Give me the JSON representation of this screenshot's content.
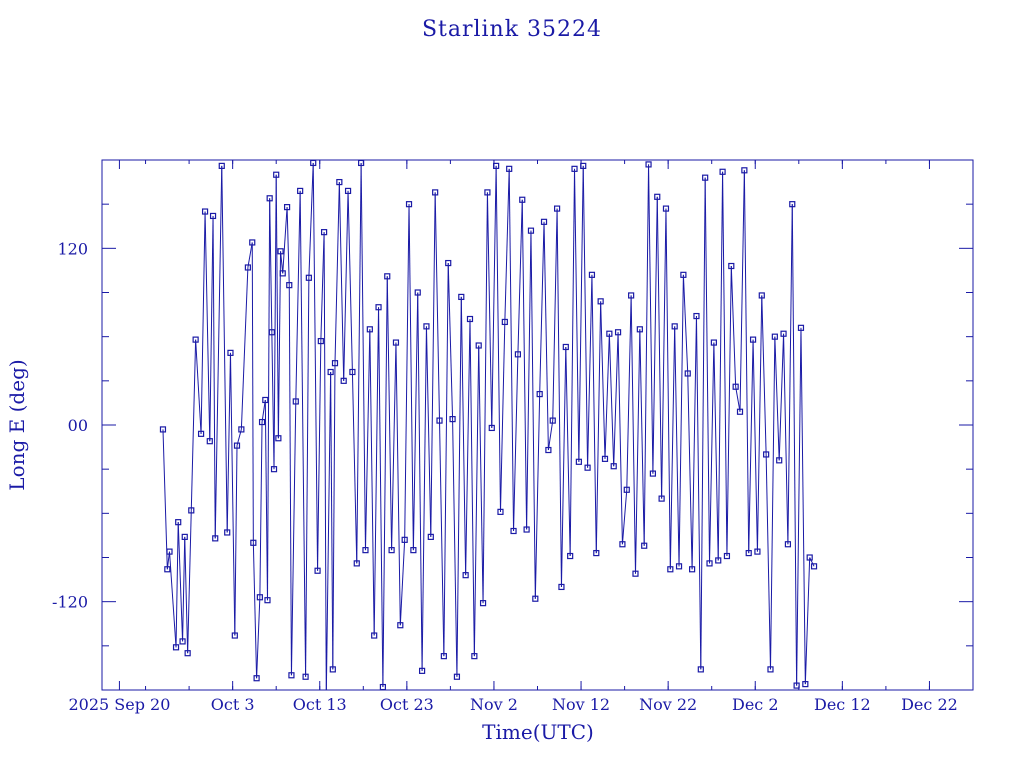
{
  "colors": {
    "foreground": "#1a1aa6",
    "background": "#ffffff"
  },
  "chart_data": {
    "type": "line",
    "title": "Starlink 35224",
    "xlabel": "Time(UTC)",
    "ylabel": "Long E (deg)",
    "ylim": [
      -180,
      180
    ],
    "xlim": [
      "2025-09-18",
      "2025-12-27"
    ],
    "grid": false,
    "wrap_range": [
      -180,
      180
    ],
    "x_ticks": [
      {
        "date": "2025-09-20",
        "label": "2025 Sep 20"
      },
      {
        "date": "2025-10-03",
        "label": "Oct  3"
      },
      {
        "date": "2025-10-13",
        "label": "Oct 13"
      },
      {
        "date": "2025-10-23",
        "label": "Oct 23"
      },
      {
        "date": "2025-11-02",
        "label": "Nov  2"
      },
      {
        "date": "2025-11-12",
        "label": "Nov 12"
      },
      {
        "date": "2025-11-22",
        "label": "Nov 22"
      },
      {
        "date": "2025-12-02",
        "label": "Dec  2"
      },
      {
        "date": "2025-12-12",
        "label": "Dec 12"
      },
      {
        "date": "2025-12-22",
        "label": "Dec 22"
      }
    ],
    "y_ticks": [
      {
        "value": 120,
        "label": "120"
      },
      {
        "value": 0,
        "label": "00"
      },
      {
        "value": -120,
        "label": "-120"
      }
    ],
    "series": [
      {
        "points": [
          [
            "2025-09-25T00:00",
            -3
          ],
          [
            "2025-09-25T12:00",
            -98
          ],
          [
            "2025-09-25T18:00",
            -86
          ],
          [
            "2025-09-26T12:00",
            -151
          ],
          [
            "2025-09-26T18:00",
            -66
          ],
          [
            "2025-09-27T06:00",
            -147
          ],
          [
            "2025-09-27T12:00",
            -76
          ],
          [
            "2025-09-27T20:00",
            -155
          ],
          [
            "2025-09-28T06:00",
            -58
          ],
          [
            "2025-09-28T18:00",
            58
          ],
          [
            "2025-09-29T09:00",
            -6
          ],
          [
            "2025-09-29T20:00",
            145
          ],
          [
            "2025-09-30T09:00",
            -11
          ],
          [
            "2025-09-30T18:00",
            142
          ],
          [
            "2025-10-01T00:00",
            -77
          ],
          [
            "2025-10-01T18:00",
            176
          ],
          [
            "2025-10-02T09:00",
            -73
          ],
          [
            "2025-10-02T18:00",
            49
          ],
          [
            "2025-10-03T06:00",
            -143
          ],
          [
            "2025-10-03T12:00",
            -14
          ],
          [
            "2025-10-04T00:00",
            -3
          ],
          [
            "2025-10-04T18:00",
            107
          ],
          [
            "2025-10-05T06:00",
            124
          ],
          [
            "2025-10-05T09:00",
            -80
          ],
          [
            "2025-10-05T18:00",
            -172
          ],
          [
            "2025-10-06T03:00",
            -117
          ],
          [
            "2025-10-06T09:00",
            2
          ],
          [
            "2025-10-06T18:00",
            17
          ],
          [
            "2025-10-07T00:00",
            -119
          ],
          [
            "2025-10-07T06:00",
            154
          ],
          [
            "2025-10-07T12:00",
            63
          ],
          [
            "2025-10-07T18:00",
            -30
          ],
          [
            "2025-10-08T00:00",
            170
          ],
          [
            "2025-10-08T06:00",
            -9
          ],
          [
            "2025-10-08T12:00",
            118
          ],
          [
            "2025-10-08T18:00",
            103
          ],
          [
            "2025-10-09T06:00",
            148
          ],
          [
            "2025-10-09T12:00",
            95
          ],
          [
            "2025-10-09T18:00",
            -170
          ],
          [
            "2025-10-10T06:00",
            16
          ],
          [
            "2025-10-10T18:00",
            159
          ],
          [
            "2025-10-11T09:00",
            -171
          ],
          [
            "2025-10-11T18:00",
            100
          ],
          [
            "2025-10-12T06:00",
            178
          ],
          [
            "2025-10-12T18:00",
            -99
          ],
          [
            "2025-10-13T03:00",
            57
          ],
          [
            "2025-10-13T12:00",
            131
          ],
          [
            "2025-10-13T18:00",
            -184
          ],
          [
            "2025-10-14T06:00",
            36
          ],
          [
            "2025-10-14T12:00",
            -166
          ],
          [
            "2025-10-14T18:00",
            42
          ],
          [
            "2025-10-15T06:00",
            165
          ],
          [
            "2025-10-15T18:00",
            30
          ],
          [
            "2025-10-16T06:00",
            159
          ],
          [
            "2025-10-16T18:00",
            36
          ],
          [
            "2025-10-17T06:00",
            -94
          ],
          [
            "2025-10-17T18:00",
            178
          ],
          [
            "2025-10-18T06:00",
            -85
          ],
          [
            "2025-10-18T18:00",
            65
          ],
          [
            "2025-10-19T06:00",
            -143
          ],
          [
            "2025-10-19T18:00",
            80
          ],
          [
            "2025-10-20T06:00",
            -178
          ],
          [
            "2025-10-20T18:00",
            101
          ],
          [
            "2025-10-21T06:00",
            -85
          ],
          [
            "2025-10-21T18:00",
            56
          ],
          [
            "2025-10-22T06:00",
            -136
          ],
          [
            "2025-10-22T18:00",
            -78
          ],
          [
            "2025-10-23T06:00",
            150
          ],
          [
            "2025-10-23T18:00",
            -85
          ],
          [
            "2025-10-24T06:00",
            90
          ],
          [
            "2025-10-24T18:00",
            -167
          ],
          [
            "2025-10-25T06:00",
            67
          ],
          [
            "2025-10-25T18:00",
            -76
          ],
          [
            "2025-10-26T06:00",
            158
          ],
          [
            "2025-10-26T18:00",
            3
          ],
          [
            "2025-10-27T06:00",
            -157
          ],
          [
            "2025-10-27T18:00",
            110
          ],
          [
            "2025-10-28T06:00",
            4
          ],
          [
            "2025-10-28T18:00",
            -171
          ],
          [
            "2025-10-29T06:00",
            87
          ],
          [
            "2025-10-29T18:00",
            -102
          ],
          [
            "2025-10-30T06:00",
            72
          ],
          [
            "2025-10-30T18:00",
            -157
          ],
          [
            "2025-10-31T06:00",
            54
          ],
          [
            "2025-10-31T18:00",
            -121
          ],
          [
            "2025-11-01T06:00",
            158
          ],
          [
            "2025-11-01T18:00",
            -2
          ],
          [
            "2025-11-02T06:00",
            176
          ],
          [
            "2025-11-02T18:00",
            -59
          ],
          [
            "2025-11-03T06:00",
            70
          ],
          [
            "2025-11-03T18:00",
            174
          ],
          [
            "2025-11-04T06:00",
            -72
          ],
          [
            "2025-11-04T18:00",
            48
          ],
          [
            "2025-11-05T06:00",
            153
          ],
          [
            "2025-11-05T18:00",
            -71
          ],
          [
            "2025-11-06T06:00",
            132
          ],
          [
            "2025-11-06T18:00",
            -118
          ],
          [
            "2025-11-07T06:00",
            21
          ],
          [
            "2025-11-07T18:00",
            138
          ],
          [
            "2025-11-08T06:00",
            -17
          ],
          [
            "2025-11-08T18:00",
            3
          ],
          [
            "2025-11-09T06:00",
            147
          ],
          [
            "2025-11-09T18:00",
            -110
          ],
          [
            "2025-11-10T06:00",
            53
          ],
          [
            "2025-11-10T18:00",
            -89
          ],
          [
            "2025-11-11T06:00",
            174
          ],
          [
            "2025-11-11T18:00",
            -25
          ],
          [
            "2025-11-12T06:00",
            176
          ],
          [
            "2025-11-12T18:00",
            -29
          ],
          [
            "2025-11-13T06:00",
            102
          ],
          [
            "2025-11-13T18:00",
            -87
          ],
          [
            "2025-11-14T06:00",
            84
          ],
          [
            "2025-11-14T18:00",
            -23
          ],
          [
            "2025-11-15T06:00",
            62
          ],
          [
            "2025-11-15T18:00",
            -28
          ],
          [
            "2025-11-16T06:00",
            63
          ],
          [
            "2025-11-16T18:00",
            -81
          ],
          [
            "2025-11-17T06:00",
            -44
          ],
          [
            "2025-11-17T18:00",
            88
          ],
          [
            "2025-11-18T06:00",
            -101
          ],
          [
            "2025-11-18T18:00",
            65
          ],
          [
            "2025-11-19T06:00",
            -82
          ],
          [
            "2025-11-19T18:00",
            177
          ],
          [
            "2025-11-20T06:00",
            -33
          ],
          [
            "2025-11-20T18:00",
            155
          ],
          [
            "2025-11-21T06:00",
            -50
          ],
          [
            "2025-11-21T18:00",
            147
          ],
          [
            "2025-11-22T06:00",
            -98
          ],
          [
            "2025-11-22T18:00",
            67
          ],
          [
            "2025-11-23T06:00",
            -96
          ],
          [
            "2025-11-23T18:00",
            102
          ],
          [
            "2025-11-24T06:00",
            35
          ],
          [
            "2025-11-24T18:00",
            -98
          ],
          [
            "2025-11-25T06:00",
            74
          ],
          [
            "2025-11-25T18:00",
            -166
          ],
          [
            "2025-11-26T06:00",
            168
          ],
          [
            "2025-11-26T18:00",
            -94
          ],
          [
            "2025-11-27T06:00",
            56
          ],
          [
            "2025-11-27T18:00",
            -92
          ],
          [
            "2025-11-28T06:00",
            172
          ],
          [
            "2025-11-28T18:00",
            -89
          ],
          [
            "2025-11-29T06:00",
            108
          ],
          [
            "2025-11-29T18:00",
            26
          ],
          [
            "2025-11-30T06:00",
            9
          ],
          [
            "2025-11-30T18:00",
            173
          ],
          [
            "2025-12-01T06:00",
            -87
          ],
          [
            "2025-12-01T18:00",
            58
          ],
          [
            "2025-12-02T06:00",
            -86
          ],
          [
            "2025-12-02T18:00",
            88
          ],
          [
            "2025-12-03T06:00",
            -20
          ],
          [
            "2025-12-03T18:00",
            -166
          ],
          [
            "2025-12-04T06:00",
            60
          ],
          [
            "2025-12-04T18:00",
            -24
          ],
          [
            "2025-12-05T06:00",
            62
          ],
          [
            "2025-12-05T18:00",
            -81
          ],
          [
            "2025-12-06T06:00",
            150
          ],
          [
            "2025-12-06T18:00",
            -177
          ],
          [
            "2025-12-07T06:00",
            66
          ],
          [
            "2025-12-07T18:00",
            -176
          ],
          [
            "2025-12-08T06:00",
            -90
          ],
          [
            "2025-12-08T18:00",
            -96
          ]
        ]
      }
    ]
  }
}
